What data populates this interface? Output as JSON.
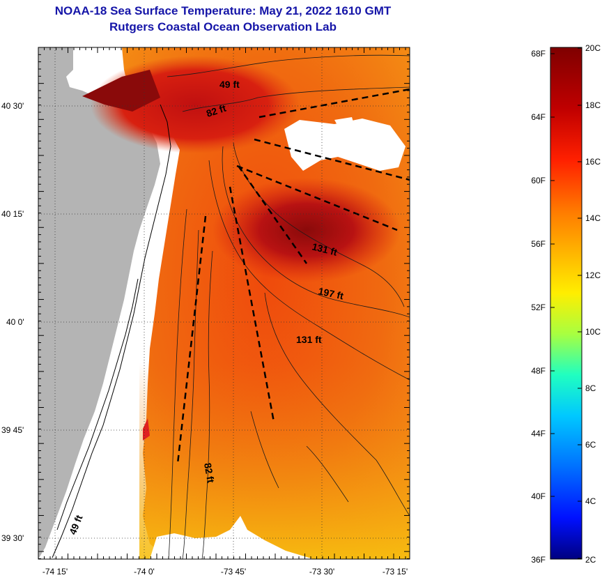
{
  "title": {
    "line1": "NOAA-18 Sea Surface Temperature:  May 21, 2022 1610 GMT",
    "line2": "Rutgers Coastal Ocean Observation Lab"
  },
  "map": {
    "lat_ticks": [
      "40 30'",
      "40 15'",
      "40 0'",
      "39 45'",
      "39 30'"
    ],
    "lon_ticks": [
      "-74 15'",
      "-74 0'",
      "-73 45'",
      "-73 30'",
      "-73 15'"
    ],
    "depth_labels": [
      "49 ft",
      "82 ft",
      "131 ft",
      "197 ft",
      "131 ft",
      "82 ft",
      "49 ft"
    ]
  },
  "colorbar": {
    "fahrenheit": [
      "68F",
      "64F",
      "60F",
      "56F",
      "52F",
      "48F",
      "44F",
      "40F",
      "36F"
    ],
    "celsius": [
      "20C",
      "18C",
      "16C",
      "14C",
      "12C",
      "10C",
      "8C",
      "6C",
      "4C",
      "2C"
    ]
  },
  "colors": {
    "title": "#1515a8",
    "land": "#b4b4b4",
    "cloud": "#ffffff",
    "warm_core": "#8a0a0a",
    "sst_mid": "#e8460c",
    "sst_cool": "#f29a10"
  }
}
